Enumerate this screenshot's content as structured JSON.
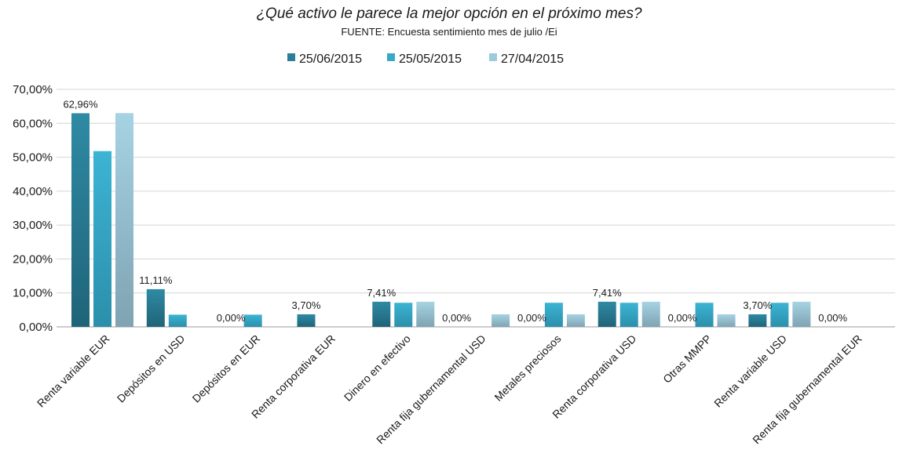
{
  "chart_data": {
    "type": "bar",
    "title": "¿Qué activo le parece la mejor opción  en el próximo mes?",
    "subtitle": "FUENTE: Encuesta sentimiento mes de julio /Ei",
    "xlabel": "",
    "ylabel": "",
    "ylim": [
      0,
      70
    ],
    "yticks": [
      "0,00%",
      "10,00%",
      "20,00%",
      "30,00%",
      "40,00%",
      "50,00%",
      "60,00%",
      "70,00%"
    ],
    "legend_position": "top-center",
    "categories": [
      "Renta variable EUR",
      "Depósitos en USD",
      "Depósitos en EUR",
      "Renta corporativa EUR",
      "Dinero en efectivo",
      "Renta fija gubernamental USD",
      "Metales preciosos",
      "Renta corporativa USD",
      "Otras MMPP",
      "Renta variable USD",
      "Renta fija gubernamental EUR"
    ],
    "series": [
      {
        "name": "25/06/2015",
        "color": "#2a7f98",
        "values": [
          62.96,
          11.11,
          0.0,
          3.7,
          7.41,
          0.0,
          0.0,
          7.41,
          0.0,
          3.7,
          0.0
        ],
        "labels": [
          "62,96%",
          "11,11%",
          "0,00%",
          "3,70%",
          "7,41%",
          "0,00%",
          "0,00%",
          "7,41%",
          "0,00%",
          "3,70%",
          "0,00%"
        ]
      },
      {
        "name": "25/05/2015",
        "color": "#37a9c9",
        "values": [
          51.8,
          3.6,
          3.6,
          0.0,
          7.1,
          0.0,
          7.1,
          7.1,
          7.1,
          7.1,
          0.0
        ]
      },
      {
        "name": "27/04/2015",
        "color": "#9ccbdc",
        "values": [
          63.0,
          0.0,
          0.0,
          0.0,
          7.4,
          3.7,
          3.7,
          7.4,
          3.7,
          7.4,
          0.0
        ]
      }
    ]
  }
}
